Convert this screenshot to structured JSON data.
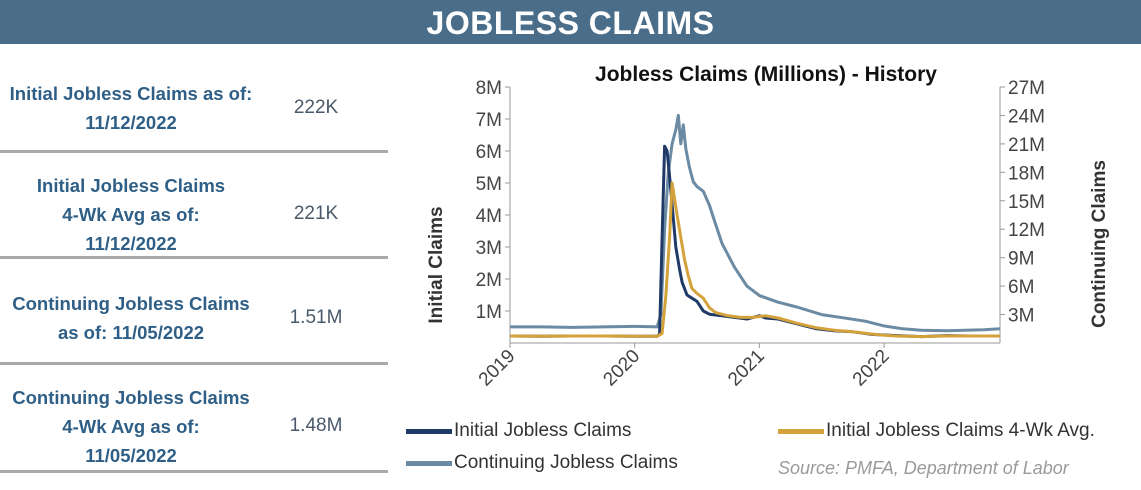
{
  "banner": {
    "title": "JOBLESS CLAIMS"
  },
  "stats": [
    {
      "label_lines": [
        "Initial Jobless Claims as of:",
        "11/12/2022"
      ],
      "value": "222K"
    },
    {
      "label_lines": [
        "Initial Jobless Claims",
        "4-Wk Avg as of:",
        "11/12/2022"
      ],
      "value": "221K"
    },
    {
      "label_lines": [
        "Continuing Jobless Claims",
        "as of: 11/05/2022"
      ],
      "value": "1.51M"
    },
    {
      "label_lines": [
        "Continuing Jobless Claims",
        "4-Wk Avg as of:",
        "11/05/2022"
      ],
      "value": "1.48M"
    }
  ],
  "source": "Source: PMFA, Department of Labor",
  "colors": {
    "banner": "#4a6e8a",
    "initial": "#1f3a66",
    "initial_avg": "#d4a23a",
    "continuing": "#6b8aa3",
    "stat_label": "#2f5f86"
  },
  "chart_data": {
    "type": "line",
    "title": "Jobless Claims (Millions) - History",
    "ylabel": "Initial Claims",
    "y2label": "Continuing  Claims",
    "x_ticks": [
      "2019",
      "2020",
      "2021",
      "2022"
    ],
    "xlim": [
      2019.0,
      2022.93
    ],
    "ylim": [
      0,
      8
    ],
    "y2lim": [
      0,
      27
    ],
    "y_ticks": [
      1,
      2,
      3,
      4,
      5,
      6,
      7,
      8
    ],
    "y_tick_labels": [
      "1M",
      "2M",
      "3M",
      "4M",
      "5M",
      "6M",
      "7M",
      "8M"
    ],
    "y2_ticks": [
      3,
      6,
      9,
      12,
      15,
      18,
      21,
      24,
      27
    ],
    "y2_tick_labels": [
      "3M",
      "6M",
      "9M",
      "12M",
      "15M",
      "18M",
      "21M",
      "24M",
      "27M"
    ],
    "legend": [
      "Initial Jobless Claims",
      "Initial Jobless Claims 4-Wk Avg.",
      "Continuing Jobless Claims"
    ],
    "series": [
      {
        "name": "Initial Jobless Claims",
        "axis": "left",
        "points": [
          [
            2019.0,
            0.22
          ],
          [
            2019.25,
            0.21
          ],
          [
            2019.5,
            0.22
          ],
          [
            2019.75,
            0.22
          ],
          [
            2020.0,
            0.21
          ],
          [
            2020.18,
            0.21
          ],
          [
            2020.2,
            0.28
          ],
          [
            2020.22,
            3.3
          ],
          [
            2020.24,
            6.15
          ],
          [
            2020.26,
            6.0
          ],
          [
            2020.28,
            5.2
          ],
          [
            2020.31,
            3.9
          ],
          [
            2020.33,
            3.0
          ],
          [
            2020.36,
            2.3
          ],
          [
            2020.38,
            1.9
          ],
          [
            2020.42,
            1.5
          ],
          [
            2020.46,
            1.4
          ],
          [
            2020.5,
            1.3
          ],
          [
            2020.55,
            1.0
          ],
          [
            2020.6,
            0.9
          ],
          [
            2020.7,
            0.85
          ],
          [
            2020.8,
            0.8
          ],
          [
            2020.9,
            0.75
          ],
          [
            2021.0,
            0.85
          ],
          [
            2021.05,
            0.78
          ],
          [
            2021.15,
            0.75
          ],
          [
            2021.3,
            0.6
          ],
          [
            2021.45,
            0.45
          ],
          [
            2021.6,
            0.38
          ],
          [
            2021.75,
            0.35
          ],
          [
            2021.9,
            0.27
          ],
          [
            2022.0,
            0.25
          ],
          [
            2022.1,
            0.23
          ],
          [
            2022.3,
            0.2
          ],
          [
            2022.5,
            0.23
          ],
          [
            2022.7,
            0.22
          ],
          [
            2022.85,
            0.22
          ],
          [
            2022.93,
            0.22
          ]
        ]
      },
      {
        "name": "Initial Jobless Claims 4-Wk Avg.",
        "axis": "left",
        "points": [
          [
            2019.0,
            0.22
          ],
          [
            2019.25,
            0.21
          ],
          [
            2019.5,
            0.22
          ],
          [
            2019.75,
            0.22
          ],
          [
            2020.0,
            0.21
          ],
          [
            2020.18,
            0.21
          ],
          [
            2020.22,
            0.3
          ],
          [
            2020.25,
            1.5
          ],
          [
            2020.28,
            3.3
          ],
          [
            2020.3,
            5.0
          ],
          [
            2020.32,
            4.5
          ],
          [
            2020.34,
            4.0
          ],
          [
            2020.37,
            3.3
          ],
          [
            2020.4,
            2.6
          ],
          [
            2020.43,
            2.1
          ],
          [
            2020.46,
            1.7
          ],
          [
            2020.5,
            1.55
          ],
          [
            2020.55,
            1.4
          ],
          [
            2020.6,
            1.1
          ],
          [
            2020.65,
            0.95
          ],
          [
            2020.75,
            0.85
          ],
          [
            2020.85,
            0.8
          ],
          [
            2020.95,
            0.8
          ],
          [
            2021.05,
            0.85
          ],
          [
            2021.15,
            0.78
          ],
          [
            2021.3,
            0.62
          ],
          [
            2021.45,
            0.48
          ],
          [
            2021.6,
            0.4
          ],
          [
            2021.75,
            0.35
          ],
          [
            2021.9,
            0.28
          ],
          [
            2022.0,
            0.24
          ],
          [
            2022.1,
            0.22
          ],
          [
            2022.3,
            0.2
          ],
          [
            2022.5,
            0.22
          ],
          [
            2022.7,
            0.22
          ],
          [
            2022.85,
            0.22
          ],
          [
            2022.93,
            0.22
          ]
        ]
      },
      {
        "name": "Continuing Jobless Claims",
        "axis": "right",
        "points": [
          [
            2019.0,
            1.7
          ],
          [
            2019.25,
            1.7
          ],
          [
            2019.5,
            1.65
          ],
          [
            2019.75,
            1.7
          ],
          [
            2020.0,
            1.75
          ],
          [
            2020.18,
            1.7
          ],
          [
            2020.21,
            3.0
          ],
          [
            2020.24,
            12.0
          ],
          [
            2020.27,
            18.0
          ],
          [
            2020.3,
            21.0
          ],
          [
            2020.33,
            22.5
          ],
          [
            2020.35,
            24.0
          ],
          [
            2020.37,
            21.0
          ],
          [
            2020.39,
            23.0
          ],
          [
            2020.41,
            20.5
          ],
          [
            2020.44,
            18.5
          ],
          [
            2020.47,
            17.0
          ],
          [
            2020.5,
            16.5
          ],
          [
            2020.55,
            16.0
          ],
          [
            2020.6,
            14.5
          ],
          [
            2020.65,
            12.5
          ],
          [
            2020.7,
            10.5
          ],
          [
            2020.8,
            8.0
          ],
          [
            2020.9,
            6.0
          ],
          [
            2021.0,
            5.0
          ],
          [
            2021.15,
            4.3
          ],
          [
            2021.3,
            3.8
          ],
          [
            2021.5,
            3.0
          ],
          [
            2021.7,
            2.6
          ],
          [
            2021.85,
            2.3
          ],
          [
            2022.0,
            1.8
          ],
          [
            2022.15,
            1.5
          ],
          [
            2022.3,
            1.35
          ],
          [
            2022.5,
            1.3
          ],
          [
            2022.65,
            1.35
          ],
          [
            2022.8,
            1.4
          ],
          [
            2022.93,
            1.5
          ]
        ]
      }
    ]
  }
}
